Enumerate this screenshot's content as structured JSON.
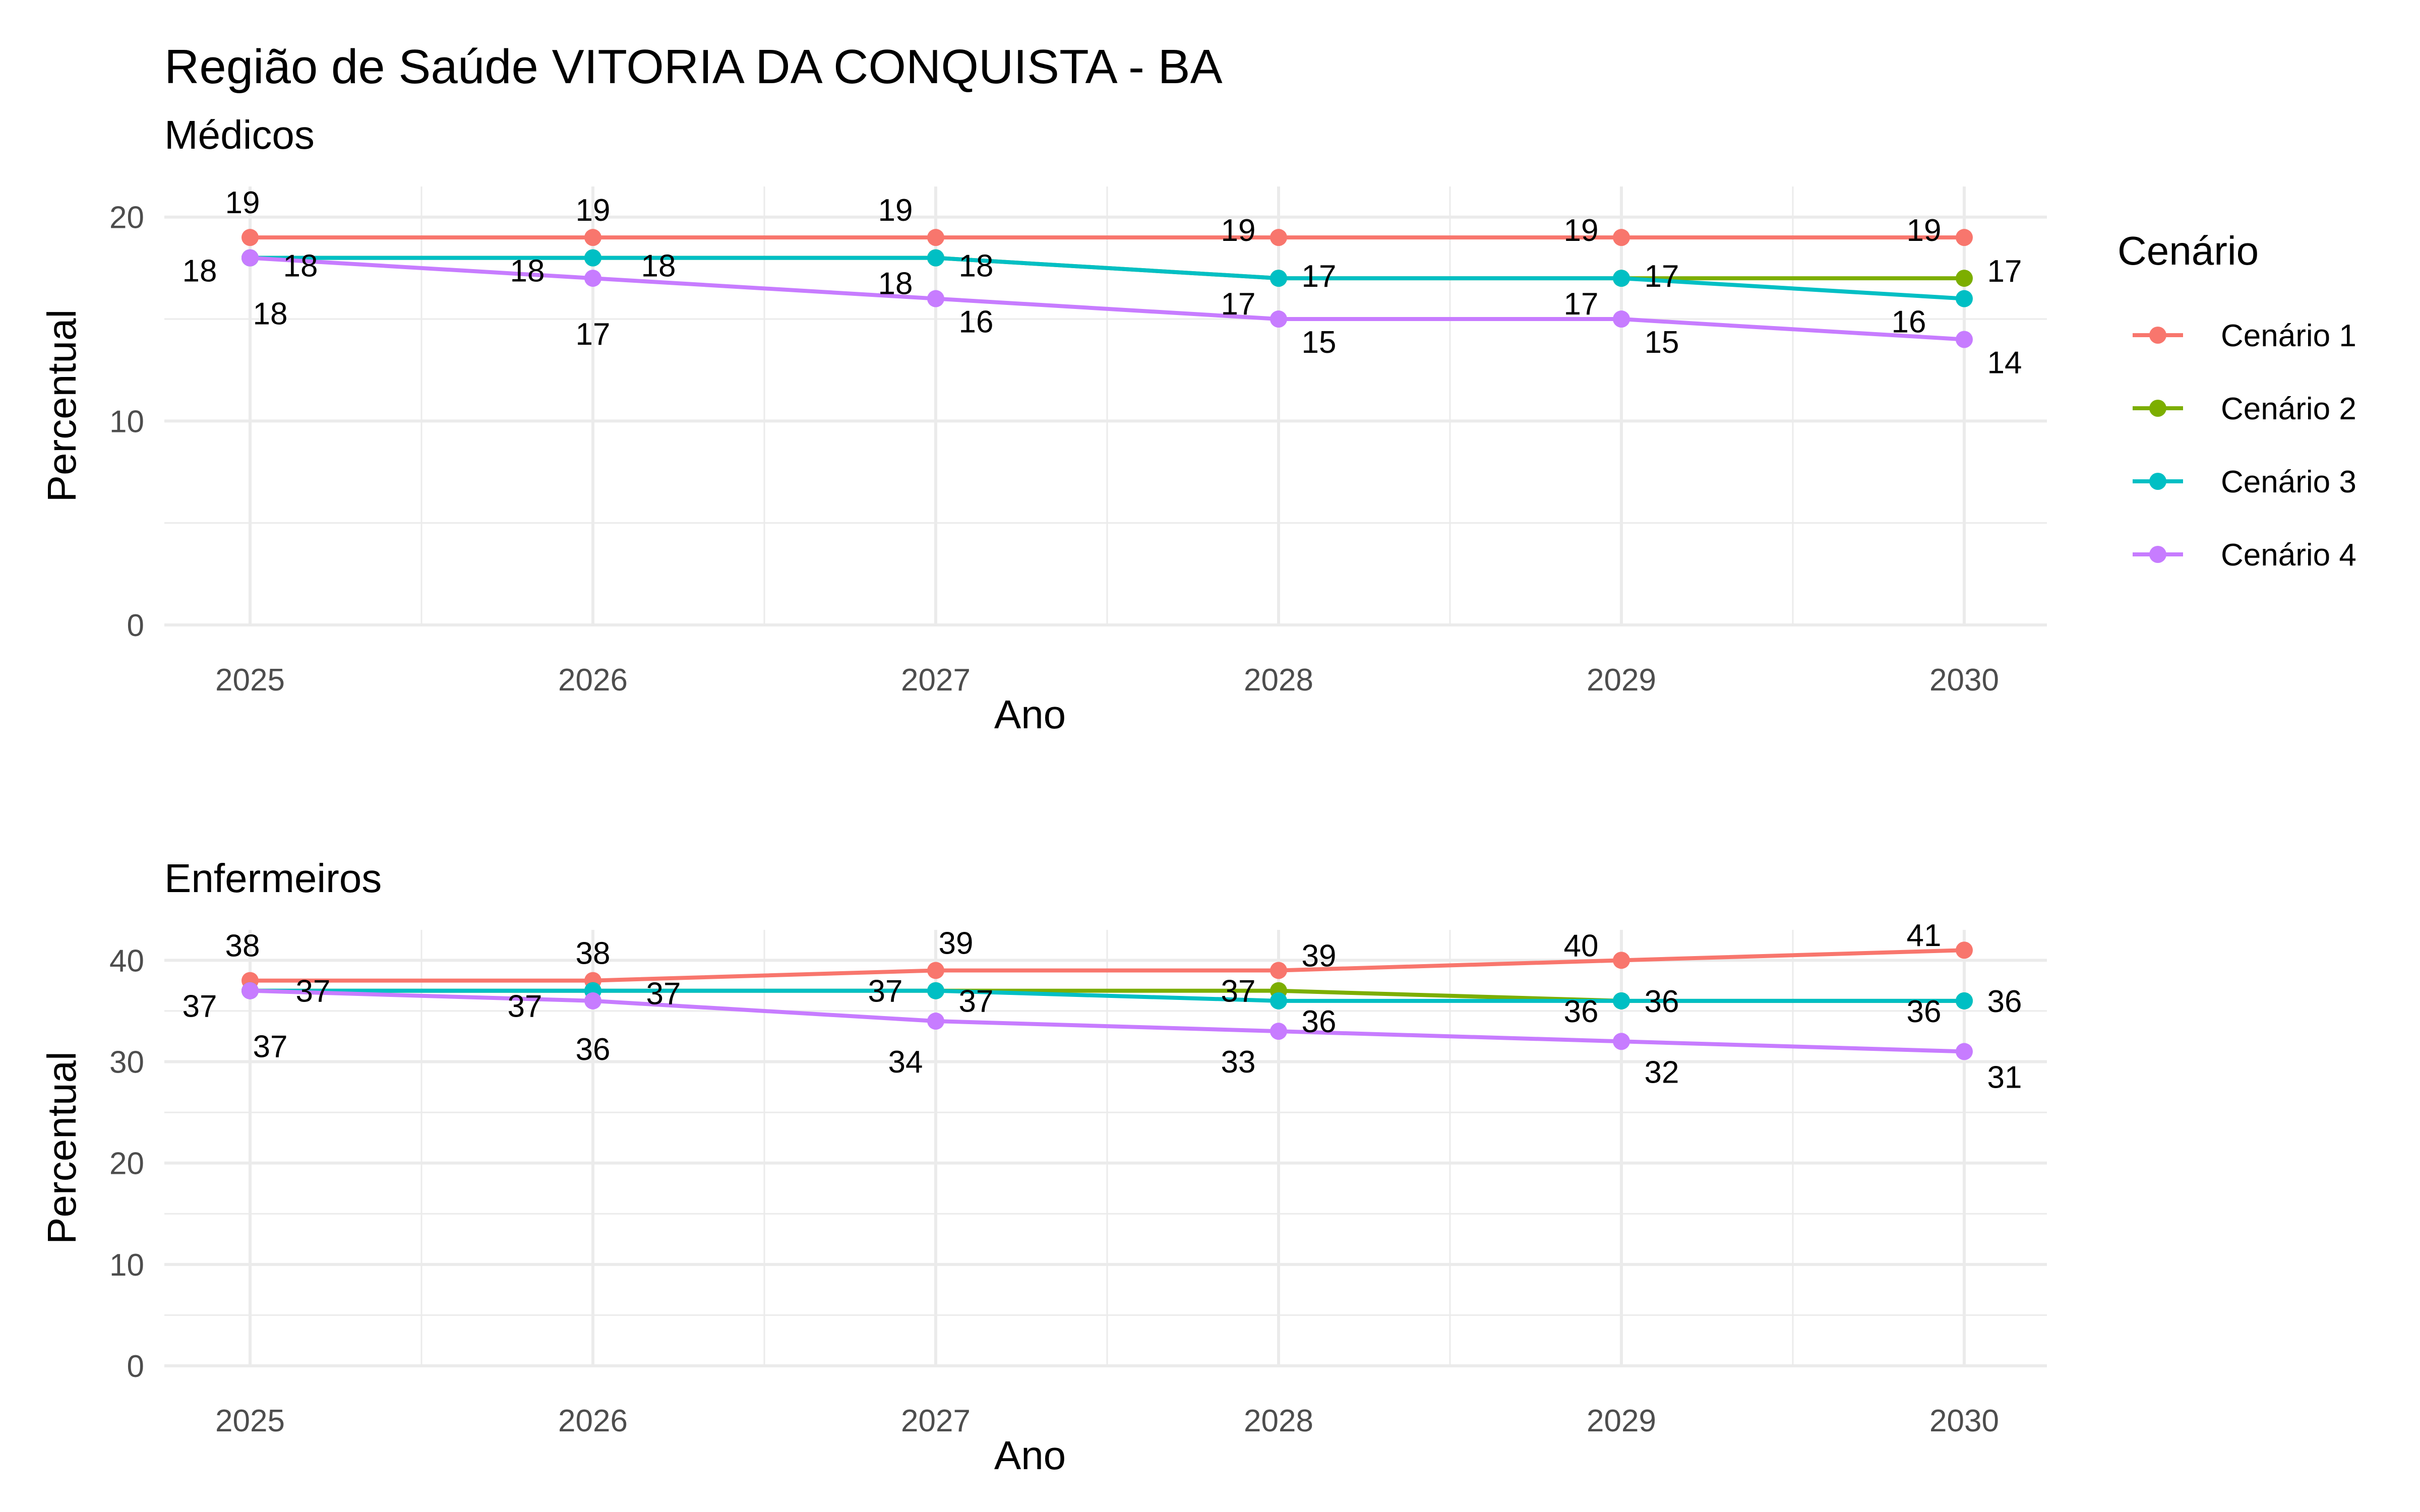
{
  "title": "Região de Saúde VITORIA DA CONQUISTA - BA",
  "legend": {
    "title": "Cenário",
    "position": "right",
    "items": [
      {
        "name": "Cenário 1",
        "color": "#F8766D"
      },
      {
        "name": "Cenário 2",
        "color": "#7CAE00"
      },
      {
        "name": "Cenário 3",
        "color": "#00BFC4"
      },
      {
        "name": "Cenário 4",
        "color": "#C77CFF"
      }
    ]
  },
  "chart_data": [
    {
      "type": "line",
      "subtitle": "Médicos",
      "xlabel": "Ano",
      "ylabel": "Percentual",
      "x": [
        2025,
        2026,
        2027,
        2028,
        2029,
        2030
      ],
      "yticks": [
        0,
        10,
        20
      ],
      "ylim": [
        0,
        21.5
      ],
      "grid": true,
      "series": [
        {
          "name": "Cenário 1",
          "color": "#F8766D",
          "values": [
            19,
            19,
            19,
            19,
            19,
            19
          ]
        },
        {
          "name": "Cenário 2",
          "color": "#7CAE00",
          "values": [
            18,
            18,
            18,
            17,
            17,
            17
          ]
        },
        {
          "name": "Cenário 3",
          "color": "#00BFC4",
          "values": [
            18,
            18,
            18,
            17,
            17,
            16
          ]
        },
        {
          "name": "Cenário 4",
          "color": "#C77CFF",
          "values": [
            18,
            17,
            16,
            15,
            15,
            14
          ]
        }
      ]
    },
    {
      "type": "line",
      "subtitle": "Enfermeiros",
      "xlabel": "Ano",
      "ylabel": "Percentual",
      "x": [
        2025,
        2026,
        2027,
        2028,
        2029,
        2030
      ],
      "yticks": [
        0,
        10,
        20,
        30,
        40
      ],
      "ylim": [
        0,
        43
      ],
      "grid": true,
      "series": [
        {
          "name": "Cenário 1",
          "color": "#F8766D",
          "values": [
            38,
            38,
            39,
            39,
            40,
            41
          ]
        },
        {
          "name": "Cenário 2",
          "color": "#7CAE00",
          "values": [
            37,
            37,
            37,
            37,
            36,
            36
          ]
        },
        {
          "name": "Cenário 3",
          "color": "#00BFC4",
          "values": [
            37,
            37,
            37,
            36,
            36,
            36
          ]
        },
        {
          "name": "Cenário 4",
          "color": "#C77CFF",
          "values": [
            37,
            36,
            34,
            33,
            32,
            31
          ]
        }
      ]
    }
  ]
}
